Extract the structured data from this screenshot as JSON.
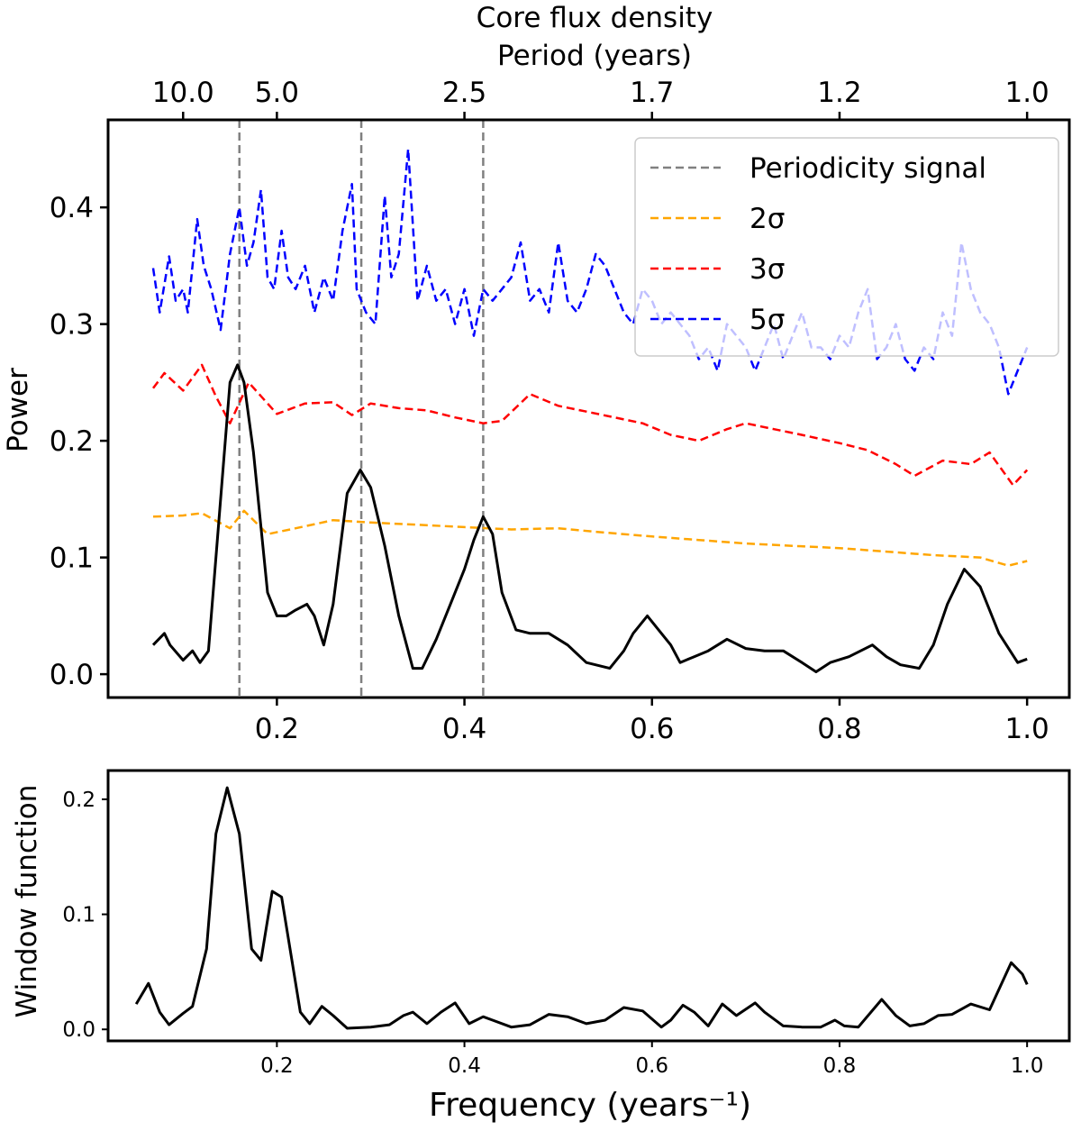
{
  "chart_data": [
    {
      "type": "line",
      "title": "Core flux density",
      "secondary_xlabel": "Period (years)",
      "secondary_x_ticks": [
        {
          "freq": 0.1,
          "label": "10.0"
        },
        {
          "freq": 0.2,
          "label": "5.0"
        },
        {
          "freq": 0.4,
          "label": "2.5"
        },
        {
          "freq": 0.6,
          "label": "1.7"
        },
        {
          "freq": 0.8,
          "label": "1.2"
        },
        {
          "freq": 1.0,
          "label": "1.0"
        }
      ],
      "xlabel": "",
      "ylabel": "Power",
      "xlim": [
        0.02,
        1.045
      ],
      "ylim": [
        -0.02,
        0.475
      ],
      "x_ticks": [
        0.2,
        0.4,
        0.6,
        0.8,
        1.0
      ],
      "x_tick_labels": [
        "0.2",
        "0.4",
        "0.6",
        "0.8",
        "1.0"
      ],
      "y_ticks": [
        0.0,
        0.1,
        0.2,
        0.3,
        0.4
      ],
      "y_tick_labels": [
        "0.0",
        "0.1",
        "0.2",
        "0.3",
        "0.4"
      ],
      "periodicity_signals": [
        0.16,
        0.29,
        0.42
      ],
      "legend": {
        "placement": "top-right",
        "entries": [
          {
            "label": "Periodicity signal",
            "color": "#808080",
            "style": "dashed"
          },
          {
            "label": "2σ",
            "color": "#FFA500",
            "style": "dashed"
          },
          {
            "label": "3σ",
            "color": "#FF0000",
            "style": "dashed"
          },
          {
            "label": "5σ",
            "color": "#0000FF",
            "style": "dashed"
          }
        ]
      },
      "series": [
        {
          "name": "Power",
          "color": "#000000",
          "style": "solid",
          "x": [
            0.068,
            0.08,
            0.086,
            0.1,
            0.11,
            0.118,
            0.127,
            0.14,
            0.15,
            0.158,
            0.165,
            0.175,
            0.19,
            0.2,
            0.21,
            0.22,
            0.232,
            0.24,
            0.25,
            0.26,
            0.275,
            0.289,
            0.3,
            0.315,
            0.33,
            0.345,
            0.355,
            0.37,
            0.385,
            0.4,
            0.41,
            0.42,
            0.43,
            0.44,
            0.455,
            0.47,
            0.49,
            0.51,
            0.53,
            0.555,
            0.57,
            0.58,
            0.595,
            0.61,
            0.62,
            0.63,
            0.645,
            0.66,
            0.68,
            0.7,
            0.72,
            0.74,
            0.76,
            0.775,
            0.79,
            0.81,
            0.835,
            0.85,
            0.865,
            0.885,
            0.9,
            0.915,
            0.933,
            0.95,
            0.97,
            0.99,
            1.0
          ],
          "values": [
            0.025,
            0.035,
            0.025,
            0.012,
            0.02,
            0.01,
            0.02,
            0.15,
            0.25,
            0.265,
            0.25,
            0.19,
            0.07,
            0.05,
            0.05,
            0.055,
            0.06,
            0.05,
            0.025,
            0.06,
            0.155,
            0.175,
            0.16,
            0.11,
            0.05,
            0.005,
            0.005,
            0.03,
            0.06,
            0.09,
            0.115,
            0.135,
            0.12,
            0.07,
            0.038,
            0.035,
            0.035,
            0.025,
            0.01,
            0.005,
            0.02,
            0.035,
            0.05,
            0.035,
            0.025,
            0.01,
            0.015,
            0.02,
            0.03,
            0.022,
            0.02,
            0.02,
            0.01,
            0.002,
            0.01,
            0.015,
            0.025,
            0.015,
            0.008,
            0.005,
            0.025,
            0.06,
            0.09,
            0.075,
            0.035,
            0.01,
            0.013
          ]
        },
        {
          "name": "2σ",
          "color": "#FFA500",
          "style": "dashed",
          "x": [
            0.068,
            0.1,
            0.12,
            0.15,
            0.165,
            0.19,
            0.22,
            0.26,
            0.3,
            0.35,
            0.4,
            0.45,
            0.5,
            0.54,
            0.57,
            0.6,
            0.65,
            0.7,
            0.75,
            0.8,
            0.85,
            0.9,
            0.95,
            0.98,
            1.0
          ],
          "values": [
            0.135,
            0.136,
            0.138,
            0.125,
            0.14,
            0.12,
            0.125,
            0.132,
            0.13,
            0.128,
            0.126,
            0.124,
            0.125,
            0.122,
            0.12,
            0.118,
            0.115,
            0.112,
            0.11,
            0.108,
            0.105,
            0.102,
            0.1,
            0.093,
            0.097
          ]
        },
        {
          "name": "3σ",
          "color": "#FF0000",
          "style": "dashed",
          "x": [
            0.068,
            0.08,
            0.1,
            0.12,
            0.135,
            0.15,
            0.17,
            0.2,
            0.23,
            0.26,
            0.28,
            0.3,
            0.33,
            0.36,
            0.39,
            0.42,
            0.44,
            0.47,
            0.5,
            0.53,
            0.56,
            0.59,
            0.62,
            0.65,
            0.68,
            0.7,
            0.73,
            0.76,
            0.8,
            0.83,
            0.86,
            0.88,
            0.91,
            0.94,
            0.96,
            0.985,
            1.0
          ],
          "values": [
            0.245,
            0.258,
            0.243,
            0.265,
            0.238,
            0.215,
            0.25,
            0.223,
            0.232,
            0.233,
            0.222,
            0.232,
            0.228,
            0.226,
            0.22,
            0.215,
            0.217,
            0.24,
            0.23,
            0.225,
            0.22,
            0.215,
            0.205,
            0.2,
            0.21,
            0.215,
            0.21,
            0.205,
            0.198,
            0.192,
            0.18,
            0.17,
            0.183,
            0.18,
            0.19,
            0.162,
            0.175
          ]
        },
        {
          "name": "5σ",
          "color": "#0000FF",
          "style": "dashed",
          "x": [
            0.068,
            0.075,
            0.085,
            0.092,
            0.1,
            0.105,
            0.115,
            0.122,
            0.13,
            0.14,
            0.15,
            0.16,
            0.168,
            0.175,
            0.183,
            0.19,
            0.197,
            0.205,
            0.212,
            0.22,
            0.23,
            0.24,
            0.25,
            0.26,
            0.27,
            0.28,
            0.285,
            0.295,
            0.305,
            0.315,
            0.322,
            0.33,
            0.34,
            0.35,
            0.36,
            0.37,
            0.38,
            0.39,
            0.4,
            0.41,
            0.42,
            0.43,
            0.44,
            0.45,
            0.46,
            0.47,
            0.48,
            0.49,
            0.5,
            0.51,
            0.52,
            0.53,
            0.54,
            0.55,
            0.56,
            0.57,
            0.58,
            0.59,
            0.6,
            0.61,
            0.62,
            0.63,
            0.64,
            0.65,
            0.66,
            0.67,
            0.68,
            0.69,
            0.7,
            0.71,
            0.72,
            0.73,
            0.74,
            0.75,
            0.76,
            0.77,
            0.78,
            0.79,
            0.8,
            0.81,
            0.82,
            0.83,
            0.84,
            0.85,
            0.86,
            0.87,
            0.88,
            0.89,
            0.9,
            0.91,
            0.92,
            0.93,
            0.94,
            0.95,
            0.96,
            0.97,
            0.98,
            0.99,
            1.0
          ],
          "values": [
            0.348,
            0.31,
            0.358,
            0.32,
            0.33,
            0.31,
            0.39,
            0.35,
            0.33,
            0.295,
            0.36,
            0.4,
            0.35,
            0.37,
            0.415,
            0.34,
            0.33,
            0.38,
            0.34,
            0.33,
            0.35,
            0.31,
            0.34,
            0.32,
            0.38,
            0.42,
            0.33,
            0.31,
            0.3,
            0.41,
            0.34,
            0.36,
            0.45,
            0.32,
            0.35,
            0.32,
            0.33,
            0.3,
            0.33,
            0.29,
            0.33,
            0.32,
            0.33,
            0.34,
            0.37,
            0.32,
            0.33,
            0.31,
            0.37,
            0.32,
            0.31,
            0.33,
            0.36,
            0.35,
            0.33,
            0.31,
            0.3,
            0.33,
            0.32,
            0.3,
            0.31,
            0.3,
            0.29,
            0.27,
            0.28,
            0.26,
            0.3,
            0.29,
            0.28,
            0.26,
            0.28,
            0.3,
            0.27,
            0.29,
            0.31,
            0.28,
            0.28,
            0.27,
            0.29,
            0.28,
            0.31,
            0.33,
            0.27,
            0.28,
            0.3,
            0.27,
            0.26,
            0.28,
            0.27,
            0.31,
            0.29,
            0.37,
            0.33,
            0.31,
            0.3,
            0.28,
            0.24,
            0.26,
            0.28
          ]
        }
      ]
    },
    {
      "type": "line",
      "title": "",
      "xlabel": "Frequency (years⁻¹)",
      "ylabel": "Window function",
      "xlim": [
        0.02,
        1.045
      ],
      "ylim": [
        -0.01,
        0.225
      ],
      "x_ticks": [
        0.2,
        0.4,
        0.6,
        0.8,
        1.0
      ],
      "x_tick_labels": [
        "0.2",
        "0.4",
        "0.6",
        "0.8",
        "1.0"
      ],
      "y_ticks": [
        0.0,
        0.1,
        0.2
      ],
      "y_tick_labels": [
        "0.0",
        "0.1",
        "0.2"
      ],
      "series": [
        {
          "name": "Window function",
          "color": "#000000",
          "style": "solid",
          "x": [
            0.05,
            0.063,
            0.075,
            0.085,
            0.1,
            0.11,
            0.125,
            0.135,
            0.147,
            0.16,
            0.173,
            0.183,
            0.195,
            0.205,
            0.215,
            0.225,
            0.235,
            0.248,
            0.26,
            0.275,
            0.3,
            0.32,
            0.335,
            0.345,
            0.36,
            0.375,
            0.39,
            0.405,
            0.42,
            0.43,
            0.45,
            0.47,
            0.49,
            0.51,
            0.53,
            0.55,
            0.57,
            0.59,
            0.61,
            0.62,
            0.633,
            0.645,
            0.66,
            0.675,
            0.69,
            0.71,
            0.72,
            0.74,
            0.76,
            0.78,
            0.795,
            0.805,
            0.82,
            0.845,
            0.86,
            0.875,
            0.89,
            0.905,
            0.92,
            0.94,
            0.96,
            0.983,
            0.995,
            1.0
          ],
          "values": [
            0.022,
            0.04,
            0.015,
            0.004,
            0.014,
            0.02,
            0.07,
            0.17,
            0.21,
            0.17,
            0.07,
            0.06,
            0.12,
            0.115,
            0.065,
            0.015,
            0.005,
            0.02,
            0.012,
            0.001,
            0.002,
            0.004,
            0.012,
            0.015,
            0.005,
            0.015,
            0.023,
            0.005,
            0.011,
            0.008,
            0.002,
            0.004,
            0.013,
            0.011,
            0.005,
            0.008,
            0.019,
            0.016,
            0.002,
            0.008,
            0.021,
            0.015,
            0.003,
            0.022,
            0.012,
            0.023,
            0.015,
            0.003,
            0.002,
            0.002,
            0.008,
            0.003,
            0.002,
            0.026,
            0.012,
            0.003,
            0.005,
            0.012,
            0.013,
            0.022,
            0.017,
            0.058,
            0.048,
            0.039
          ]
        }
      ]
    }
  ]
}
